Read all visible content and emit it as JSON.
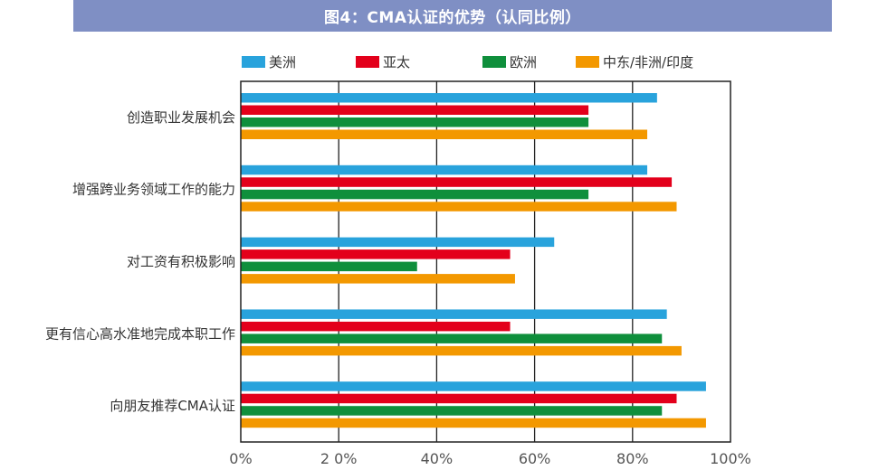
{
  "title": "图4：CMA认证的优势（认同比例）",
  "chart_data": {
    "type": "bar",
    "orientation": "horizontal",
    "title": "图4：CMA认证的优势（认同比例）",
    "categories": [
      "创造职业发展机会",
      "增强跨业务领域工作的能力",
      "对工资有积极影响",
      "更有信心高水准地完成本职工作",
      "向朋友推荐CMA认证"
    ],
    "series": [
      {
        "name": "美洲",
        "color": "#29a3dc",
        "values": [
          85,
          83,
          64,
          87,
          95
        ]
      },
      {
        "name": "亚太",
        "color": "#e3001b",
        "values": [
          71,
          88,
          55,
          55,
          89
        ]
      },
      {
        "name": "欧洲",
        "color": "#0f8f3c",
        "values": [
          71,
          71,
          36,
          86,
          86
        ]
      },
      {
        "name": "中东/非洲/印度",
        "color": "#f39800",
        "values": [
          83,
          89,
          56,
          90,
          95
        ]
      }
    ],
    "xlim": [
      0,
      100
    ],
    "x_ticks": [
      "0%",
      "2 0%",
      "40%",
      "60%",
      "80%",
      "100%"
    ],
    "x_tick_values": [
      0,
      20,
      40,
      60,
      80,
      100
    ],
    "grid": true,
    "legend_position": "top"
  }
}
